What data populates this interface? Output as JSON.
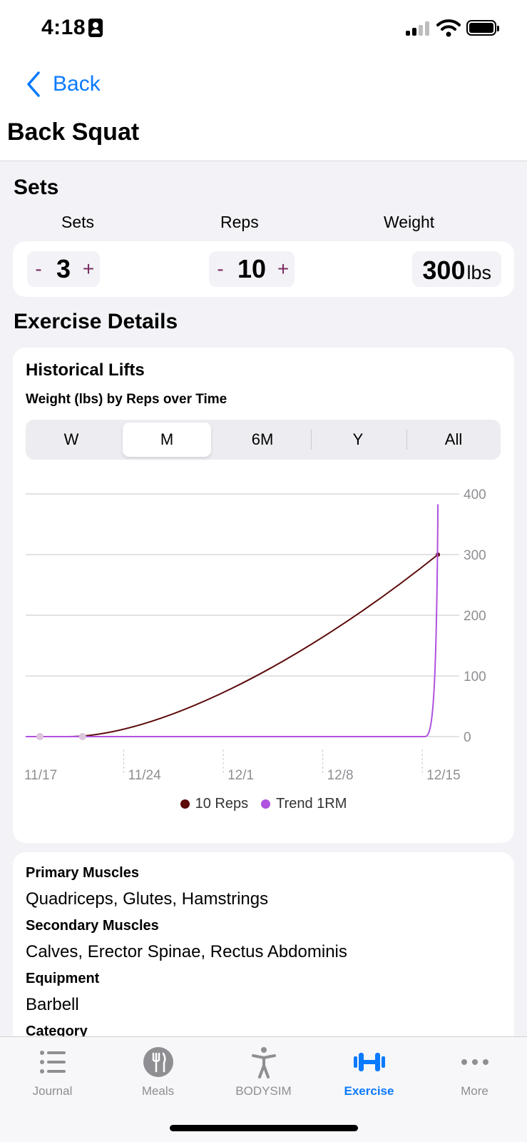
{
  "status": {
    "time": "4:18"
  },
  "nav": {
    "back_label": "Back",
    "title": "Back Squat"
  },
  "sets_section": {
    "title": "Sets",
    "labels": {
      "sets": "Sets",
      "reps": "Reps",
      "weight": "Weight"
    },
    "sets_value": "3",
    "reps_value": "10",
    "weight_value": "300",
    "weight_unit": "lbs",
    "minus": "-",
    "plus": "+"
  },
  "details": {
    "title": "Exercise Details",
    "historical_title": "Historical Lifts",
    "historical_subtitle": "Weight (lbs) by Reps over Time",
    "ranges": [
      "W",
      "M",
      "6M",
      "Y",
      "All"
    ],
    "selected_range": "M"
  },
  "chart_data": {
    "type": "line",
    "x_ticks": [
      "11/17",
      "11/24",
      "12/1",
      "12/8",
      "12/15"
    ],
    "y_ticks": [
      0,
      100,
      200,
      300,
      400
    ],
    "ylim": [
      0,
      400
    ],
    "series": [
      {
        "name": "10 Reps",
        "color": "#5c0a0a",
        "points": [
          [
            "11/17",
            0
          ],
          [
            "11/20",
            0
          ],
          [
            "12/16",
            300
          ]
        ]
      },
      {
        "name": "Trend 1RM",
        "color": "#af52de",
        "points": [
          [
            "11/17",
            0
          ],
          [
            "11/20",
            0
          ],
          [
            "12/16",
            383
          ]
        ]
      }
    ],
    "legend_position": "bottom"
  },
  "muscles": {
    "primary_label": "Primary Muscles",
    "primary_value": "Quadriceps, Glutes, Hamstrings",
    "secondary_label": "Secondary Muscles",
    "secondary_value": "Calves, Erector Spinae, Rectus Abdominis",
    "equipment_label": "Equipment",
    "equipment_value": "Barbell",
    "category_label": "Category"
  },
  "tabbar": {
    "tabs": [
      {
        "label": "Journal",
        "icon": "list-icon"
      },
      {
        "label": "Meals",
        "icon": "fork-knife-icon"
      },
      {
        "label": "BODYSIM",
        "icon": "person-icon"
      },
      {
        "label": "Exercise",
        "icon": "dumbbell-icon"
      },
      {
        "label": "More",
        "icon": "ellipsis-icon"
      }
    ],
    "active": "Exercise",
    "active_color": "#0a7aff"
  }
}
